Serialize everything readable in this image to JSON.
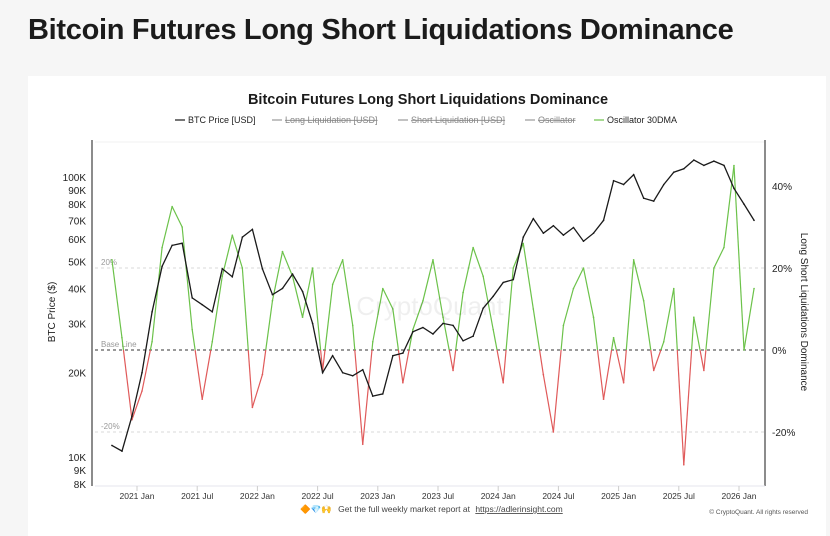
{
  "page_title": "Bitcoin Futures Long Short Liquidations Dominance",
  "chart_data": {
    "type": "line",
    "title": "Bitcoin Futures Long Short Liquidations Dominance",
    "legend": [
      {
        "name": "BTC Price [USD]",
        "color": "#1a1a1a",
        "hidden": false
      },
      {
        "name": "Long Liquidation [USD]",
        "color": "#999999",
        "hidden": true
      },
      {
        "name": "Short Liquidation [USD]",
        "color": "#999999",
        "hidden": true
      },
      {
        "name": "Oscillator",
        "color": "#999999",
        "hidden": true
      },
      {
        "name": "Oscillator 30DMA",
        "color": "#6cc24a",
        "hidden": false
      }
    ],
    "legend_position": "top",
    "ylabel_left": "BTC Price ($)",
    "ylabel_right": "Long Short Liquidations Dominance",
    "y_left_scale": "log",
    "y_left_ticks": [
      "100K",
      "90K",
      "80K",
      "70K",
      "60K",
      "50K",
      "40K",
      "30K",
      "20K",
      "10K",
      "9K",
      "8K"
    ],
    "y_left_tick_values": [
      100000,
      90000,
      80000,
      70000,
      60000,
      50000,
      40000,
      30000,
      20000,
      10000,
      9000,
      8000
    ],
    "y_right_ticks": [
      "40%",
      "20%",
      "0%",
      "-20%"
    ],
    "y_right_tick_values": [
      40,
      20,
      0,
      -20
    ],
    "x_ticks": [
      "2021 Jan",
      "2021 Jul",
      "2022 Jan",
      "2022 Jul",
      "2023 Jan",
      "2023 Jul",
      "2024 Jan",
      "2024 Jul",
      "2025 Jan",
      "2025 Jul",
      "2026 Jan"
    ],
    "annotations": [
      "20%",
      "Base Line",
      "-20%"
    ],
    "watermark": "CryptoQuant",
    "colors": {
      "positive": "#6cc24a",
      "negative": "#e05a5a",
      "price": "#1a1a1a"
    },
    "months": [
      "2020-10",
      "2020-11",
      "2020-12",
      "2021-01",
      "2021-02",
      "2021-03",
      "2021-04",
      "2021-05",
      "2021-06",
      "2021-07",
      "2021-08",
      "2021-09",
      "2021-10",
      "2021-11",
      "2021-12",
      "2022-01",
      "2022-02",
      "2022-03",
      "2022-04",
      "2022-05",
      "2022-06",
      "2022-07",
      "2022-08",
      "2022-09",
      "2022-10",
      "2022-11",
      "2022-12",
      "2023-01",
      "2023-02",
      "2023-03",
      "2023-04",
      "2023-05",
      "2023-06",
      "2023-07",
      "2023-08",
      "2023-09",
      "2023-10",
      "2023-11",
      "2023-12",
      "2024-01",
      "2024-02",
      "2024-03",
      "2024-04",
      "2024-05",
      "2024-06",
      "2024-07",
      "2024-08",
      "2024-09",
      "2024-10",
      "2024-11",
      "2024-12",
      "2025-01",
      "2025-02",
      "2025-03",
      "2025-04",
      "2025-05",
      "2025-06",
      "2025-07",
      "2025-08",
      "2025-09",
      "2025-10",
      "2025-11",
      "2025-12",
      "2026-01",
      "2026-02"
    ],
    "series": [
      {
        "name": "BTC Price [USD]",
        "values": [
          11000,
          10500,
          14000,
          20000,
          33000,
          48000,
          57000,
          58000,
          37000,
          35000,
          33000,
          47000,
          44000,
          61000,
          65000,
          47000,
          38000,
          40000,
          45000,
          39000,
          30000,
          20000,
          23000,
          20000,
          19500,
          20500,
          16500,
          16800,
          23000,
          23500,
          28000,
          29000,
          27500,
          30000,
          29500,
          26000,
          27000,
          34000,
          37500,
          42000,
          43000,
          61000,
          71000,
          63000,
          67000,
          62000,
          66000,
          59000,
          63000,
          70000,
          97000,
          94000,
          102000,
          84000,
          82000,
          94000,
          104000,
          107000,
          115000,
          110000,
          114000,
          110000,
          91000,
          80000,
          70000
        ]
      },
      {
        "name": "Oscillator 30DMA",
        "values": [
          22,
          3,
          -17,
          -10,
          2,
          25,
          35,
          30,
          5,
          -12,
          2,
          18,
          28,
          20,
          -14,
          -6,
          12,
          24,
          18,
          8,
          20,
          -5,
          16,
          22,
          6,
          -23,
          2,
          15,
          10,
          -8,
          5,
          12,
          22,
          8,
          -5,
          14,
          25,
          18,
          5,
          -8,
          20,
          26,
          10,
          -6,
          -20,
          6,
          15,
          20,
          8,
          -12,
          3,
          -8,
          22,
          12,
          -5,
          2,
          15,
          -28,
          8,
          -5,
          20,
          25,
          45,
          0,
          15
        ]
      }
    ]
  },
  "footer": {
    "promo_emoji": "🔶💎🙌",
    "promo_text": "Get the full weekly market report at",
    "promo_link": "https://adlerinsight.com",
    "copyright": "© CryptoQuant. All rights reserved"
  }
}
